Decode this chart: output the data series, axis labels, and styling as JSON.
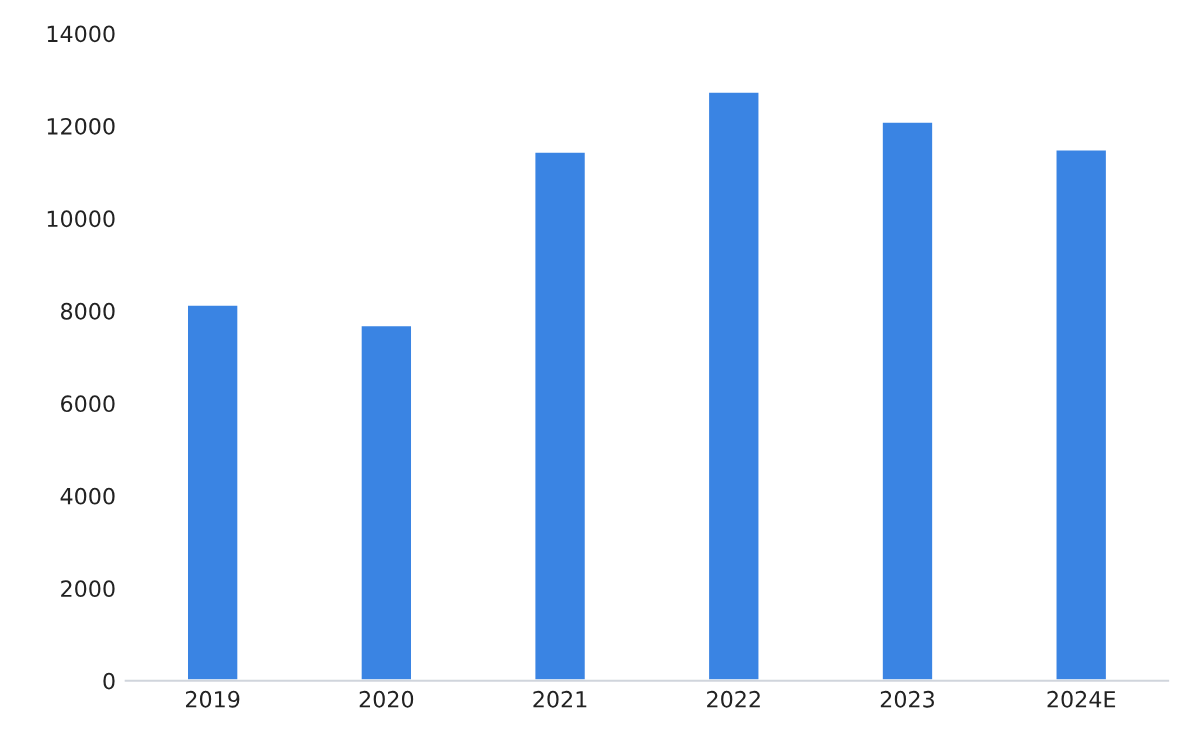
{
  "chart_data": {
    "type": "bar",
    "categories": [
      "2019",
      "2020",
      "2021",
      "2022",
      "2023",
      "2024E"
    ],
    "values": [
      8140,
      7700,
      11450,
      12750,
      12100,
      11500
    ],
    "color": "#3a84e3",
    "ylim": [
      0,
      14000
    ],
    "yticks": [
      0,
      2000,
      4000,
      6000,
      8000,
      10000,
      12000,
      14000
    ],
    "grid": false,
    "legend": false
  }
}
